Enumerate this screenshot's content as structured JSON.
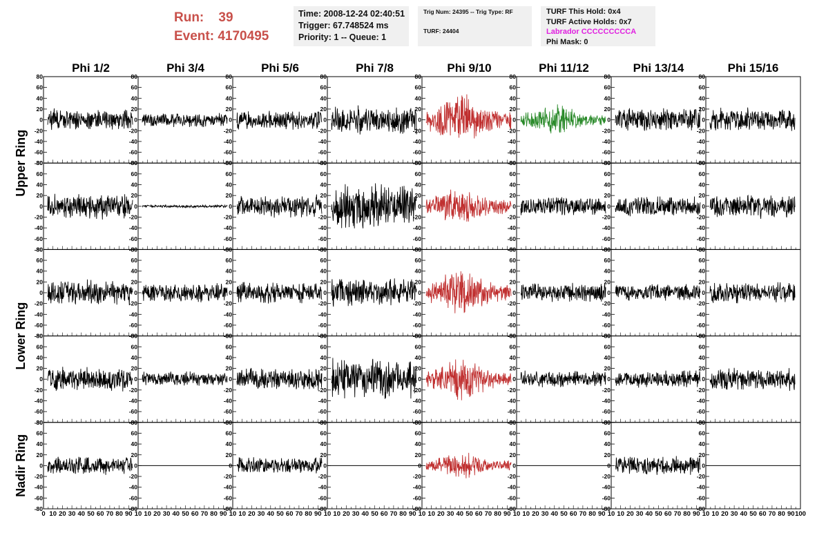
{
  "header": {
    "run_label": "Run:",
    "run_value": "39",
    "event_label": "Event:",
    "event_value": "4170495",
    "time": "Time: 2008-12-24 02:40:51",
    "trigger": "Trigger: 67.748524 ms",
    "priority": "Priority: 1 -- Queue: 1",
    "trig_num": "Trig Num: 24395 -- Trig Type: RF",
    "turf": "TURF: 24404",
    "turf_hold": "TURF This Hold: 0x4",
    "turf_active": "TURF Active Holds: 0x7",
    "labrador": "Labrador CCCCCCCCCA",
    "phi_mask": "Phi Mask: 0"
  },
  "chart_data": {
    "type": "line",
    "columns": [
      "Phi 1/2",
      "Phi 3/4",
      "Phi 5/6",
      "Phi 7/8",
      "Phi 9/10",
      "Phi 11/12",
      "Phi 13/14",
      "Phi 15/16"
    ],
    "rows": [
      {
        "label": "Upper Ring",
        "rows": [
          0,
          1
        ]
      },
      {
        "label": "Lower Ring",
        "rows": [
          2,
          3
        ]
      },
      {
        "label": "Nadir Ring",
        "rows": [
          4
        ]
      }
    ],
    "ylim": [
      -80,
      80
    ],
    "y_ticks": [
      "80",
      "60",
      "40",
      "20",
      "0",
      "-20",
      "-40",
      "-60",
      "-80"
    ],
    "xlim": [
      0,
      100
    ],
    "x_tick_labels": [
      "0",
      "10",
      "20",
      "30",
      "40",
      "50",
      "60",
      "70",
      "80",
      "90",
      "100"
    ],
    "x_tick_labels_row": "0 10 20 30 40 50 60 70 80 90 10 10 20 30 40 50 60 70 80 90 10 10 20 30 40 50 60 70 80 90 10 10 20 30 40 50 60 70 80 90 10 10 20 30 40 50 60 70 80 90 10 10 20 30 40 50 60 70 80 90 10 10 20 30 40 50 60 70 80 90 10 10 20 30 40 50 60 70 80 90 100",
    "colors": {
      "normal": "#000000",
      "triggered": "#c03030",
      "hold": "#2a8a2a"
    },
    "panels": [
      [
        {
          "color": "normal",
          "amplitude": 16,
          "envelope": "flat"
        },
        {
          "color": "normal",
          "amplitude": 10,
          "envelope": "flat"
        },
        {
          "color": "normal",
          "amplitude": 14,
          "envelope": "flat"
        },
        {
          "color": "normal",
          "amplitude": 20,
          "envelope": "flat"
        },
        {
          "color": "triggered",
          "amplitude": 38,
          "envelope": "burst"
        },
        {
          "color": "hold",
          "amplitude": 22,
          "envelope": "burst"
        },
        {
          "color": "normal",
          "amplitude": 17,
          "envelope": "flat"
        },
        {
          "color": "normal",
          "amplitude": 17,
          "envelope": "flat"
        }
      ],
      [
        {
          "color": "normal",
          "amplitude": 18,
          "envelope": "flat"
        },
        {
          "color": "normal",
          "amplitude": 2,
          "envelope": "flat"
        },
        {
          "color": "normal",
          "amplitude": 16,
          "envelope": "flat"
        },
        {
          "color": "normal",
          "amplitude": 32,
          "envelope": "flat"
        },
        {
          "color": "triggered",
          "amplitude": 30,
          "envelope": "burst"
        },
        {
          "color": "normal",
          "amplitude": 14,
          "envelope": "flat"
        },
        {
          "color": "normal",
          "amplitude": 15,
          "envelope": "flat"
        },
        {
          "color": "normal",
          "amplitude": 17,
          "envelope": "flat"
        }
      ],
      [
        {
          "color": "normal",
          "amplitude": 18,
          "envelope": "flat"
        },
        {
          "color": "normal",
          "amplitude": 14,
          "envelope": "flat"
        },
        {
          "color": "normal",
          "amplitude": 16,
          "envelope": "flat"
        },
        {
          "color": "normal",
          "amplitude": 20,
          "envelope": "flat"
        },
        {
          "color": "triggered",
          "amplitude": 34,
          "envelope": "burst"
        },
        {
          "color": "normal",
          "amplitude": 14,
          "envelope": "flat"
        },
        {
          "color": "normal",
          "amplitude": 13,
          "envelope": "flat"
        },
        {
          "color": "normal",
          "amplitude": 15,
          "envelope": "flat"
        }
      ],
      [
        {
          "color": "normal",
          "amplitude": 17,
          "envelope": "flat"
        },
        {
          "color": "normal",
          "amplitude": 11,
          "envelope": "flat"
        },
        {
          "color": "normal",
          "amplitude": 16,
          "envelope": "flat"
        },
        {
          "color": "normal",
          "amplitude": 30,
          "envelope": "flat"
        },
        {
          "color": "triggered",
          "amplitude": 32,
          "envelope": "burst"
        },
        {
          "color": "normal",
          "amplitude": 12,
          "envelope": "flat"
        },
        {
          "color": "normal",
          "amplitude": 12,
          "envelope": "flat"
        },
        {
          "color": "normal",
          "amplitude": 16,
          "envelope": "flat"
        }
      ],
      [
        {
          "color": "normal",
          "amplitude": 13,
          "envelope": "flat"
        },
        {
          "color": "normal",
          "amplitude": 0,
          "envelope": "flat"
        },
        {
          "color": "normal",
          "amplitude": 12,
          "envelope": "flat"
        },
        {
          "color": "normal",
          "amplitude": 0,
          "envelope": "flat"
        },
        {
          "color": "triggered",
          "amplitude": 20,
          "envelope": "burst"
        },
        {
          "color": "normal",
          "amplitude": 0,
          "envelope": "flat"
        },
        {
          "color": "normal",
          "amplitude": 14,
          "envelope": "flat"
        },
        {
          "color": "normal",
          "amplitude": 0,
          "envelope": "flat"
        }
      ]
    ]
  }
}
